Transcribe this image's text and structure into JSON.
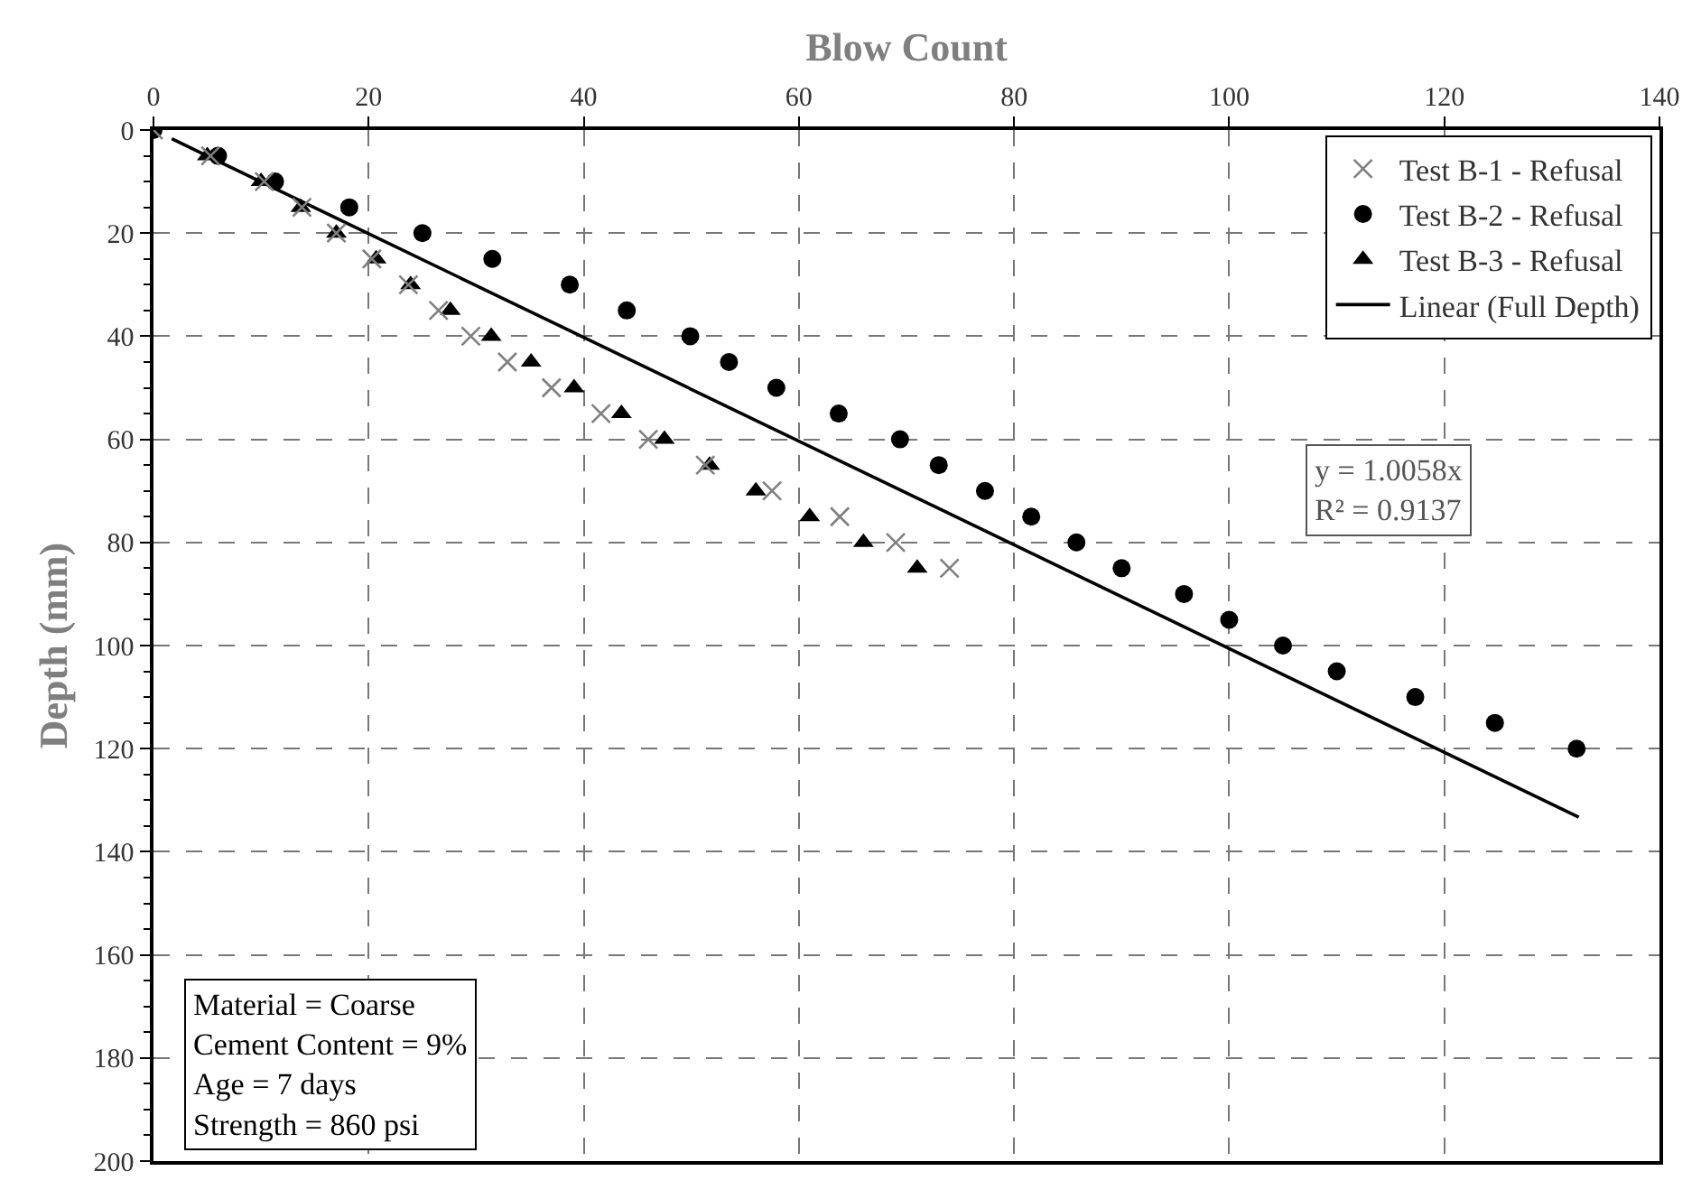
{
  "chart_data": {
    "type": "scatter",
    "xlabel": "Blow Count",
    "ylabel": "Depth (mm)",
    "xlim": [
      0,
      140
    ],
    "xticks": [
      0,
      20,
      40,
      60,
      80,
      100,
      120,
      140
    ],
    "ylim": [
      200,
      0
    ],
    "yticks": [
      0,
      20,
      40,
      60,
      80,
      100,
      120,
      140,
      160,
      180,
      200
    ],
    "grid": true,
    "legend": "top right",
    "series": [
      {
        "name": "Test B-1 - Refusal",
        "color": "#7f7f7f",
        "marker": "cross",
        "x": [
          0,
          5.3,
          10.3,
          13.8,
          17,
          20.3,
          23.7,
          26.5,
          29.5,
          32.9,
          37,
          41.6,
          46,
          51.3,
          57.5,
          63.8,
          69,
          74
        ],
        "values": [
          0,
          5,
          10,
          15,
          20,
          25,
          30,
          35,
          40,
          45,
          50,
          55,
          60,
          65,
          70,
          75,
          80,
          85
        ]
      },
      {
        "name": "Test B-2 - Refusal",
        "color": "#000000",
        "marker": "circle",
        "x": [
          0,
          6,
          11.3,
          18.2,
          25,
          31.5,
          38.7,
          44,
          49.9,
          53.5,
          57.9,
          63.7,
          69.4,
          73,
          77.3,
          81.6,
          85.8,
          90,
          95.8,
          100,
          105,
          110,
          117.3,
          124.7,
          132.3
        ],
        "values": [
          0,
          5,
          10,
          15,
          20,
          25,
          30,
          35,
          40,
          45,
          50,
          55,
          60,
          65,
          70,
          75,
          80,
          85,
          90,
          95,
          100,
          105,
          110,
          115,
          120
        ]
      },
      {
        "name": "Test B-3 - Refusal",
        "color": "#000000",
        "marker": "triangle",
        "x": [
          null,
          5,
          10,
          13.7,
          17,
          20.7,
          23.9,
          27.6,
          31.4,
          35.1,
          39.1,
          43.5,
          47.5,
          51.7,
          56,
          61,
          66,
          71
        ],
        "values": [
          null,
          5,
          10,
          15,
          20,
          25,
          30,
          35,
          40,
          45,
          50,
          55,
          60,
          65,
          70,
          75,
          80,
          85
        ]
      },
      {
        "name": "Linear (Full Depth)",
        "type": "line",
        "color": "#000000",
        "marker": "none",
        "line_style": "solid",
        "x": [
          1.7,
          132.5
        ],
        "values": [
          1.7,
          133.3
        ]
      }
    ],
    "annotations": [
      "y = 1.0058x\nR² = 0.9137",
      "Material = Coarse\nCement Content = 9%\nAge = 7 days\nStrength = 860 psi"
    ]
  }
}
